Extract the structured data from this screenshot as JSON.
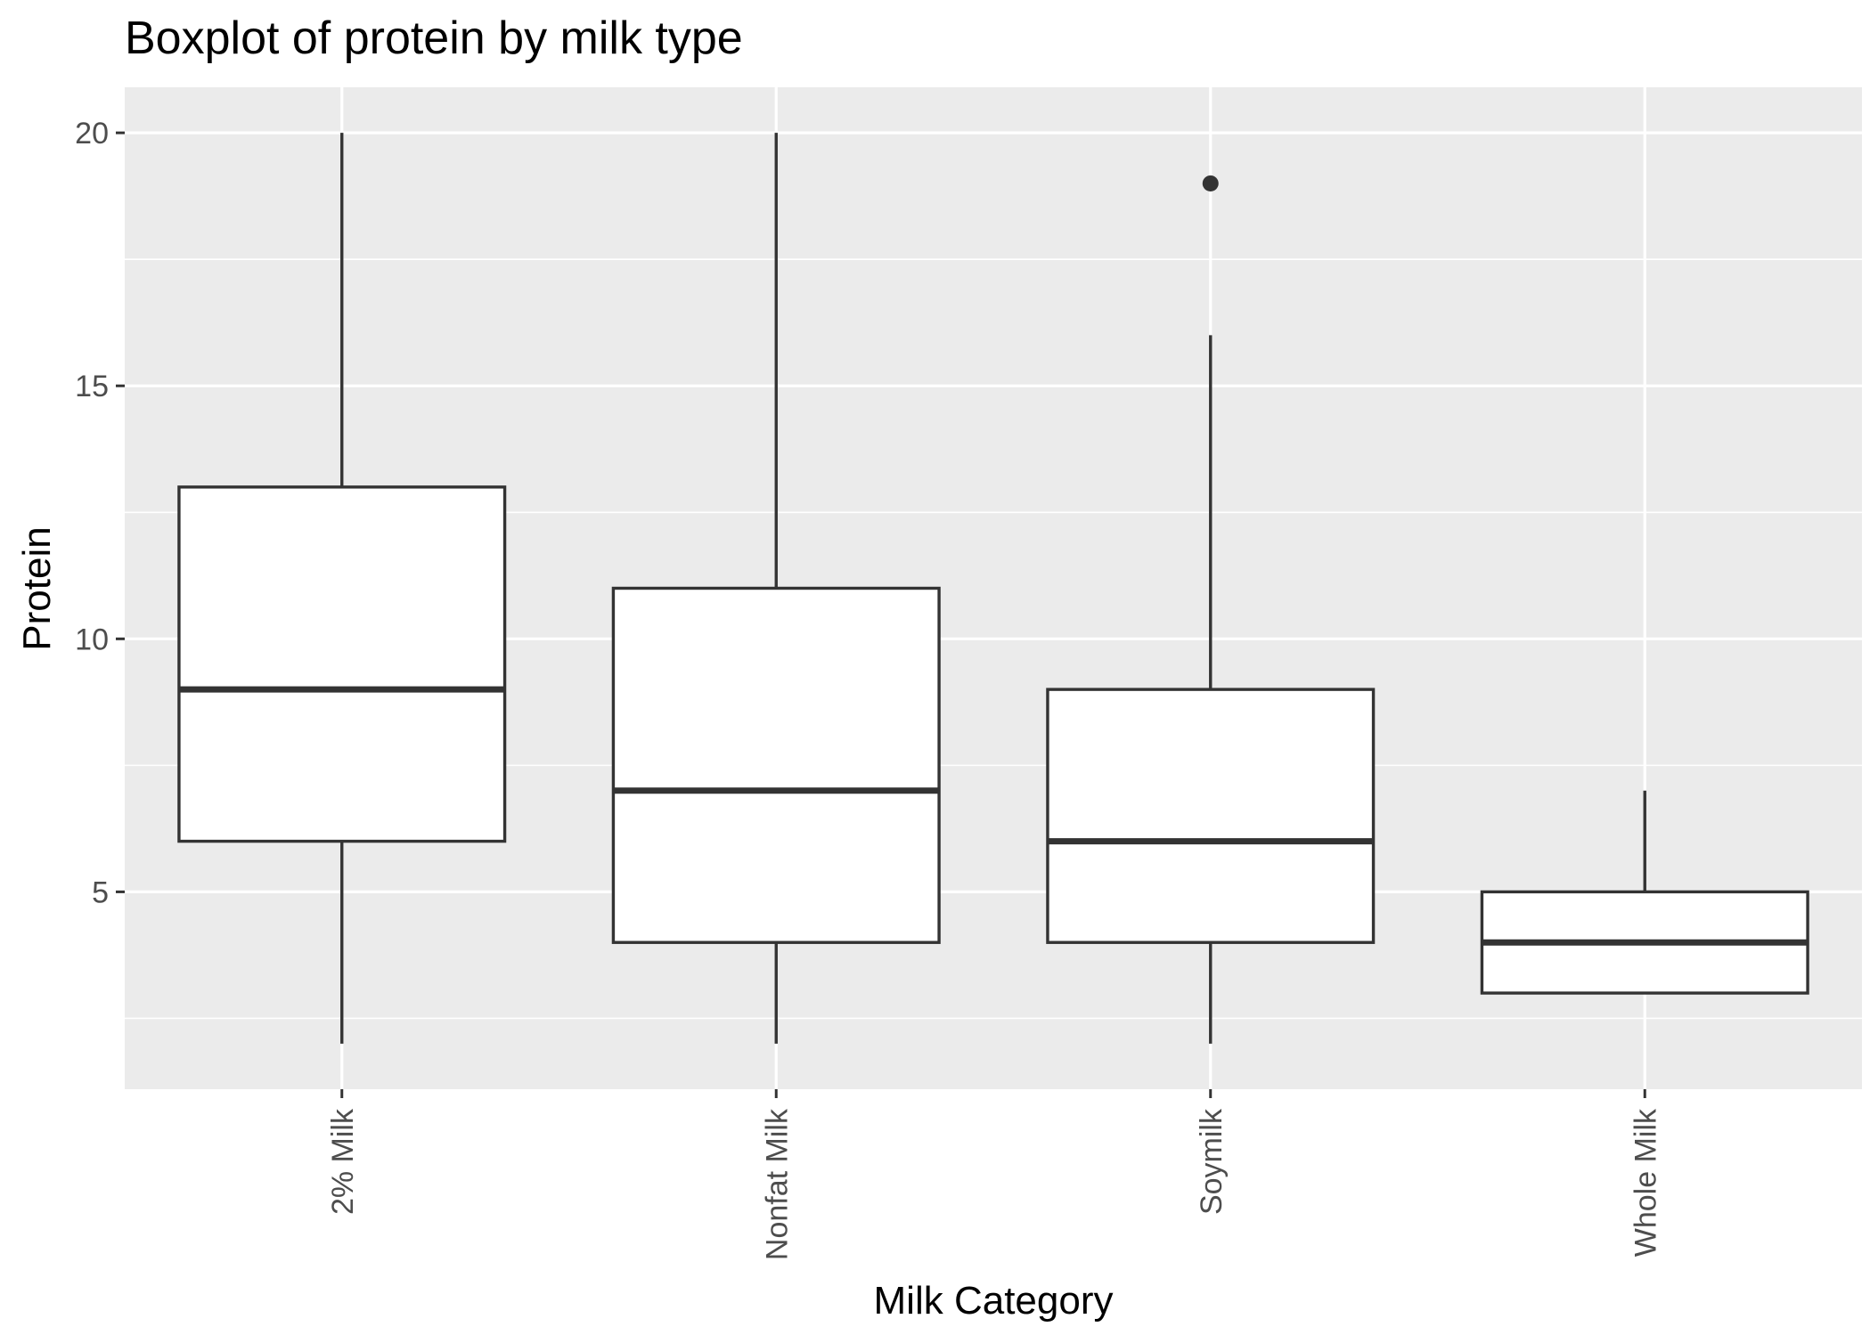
{
  "chart_data": {
    "type": "boxplot",
    "title": "Boxplot of protein by milk type",
    "xlabel": "Milk Category",
    "ylabel": "Protein",
    "categories": [
      "2% Milk",
      "Nonfat Milk",
      "Soymilk",
      "Whole Milk"
    ],
    "boxes": [
      {
        "category": "2% Milk",
        "whisker_low": 2,
        "q1": 6,
        "median": 9,
        "q3": 13,
        "whisker_high": 20,
        "outliers": []
      },
      {
        "category": "Nonfat Milk",
        "whisker_low": 2,
        "q1": 4,
        "median": 7,
        "q3": 11,
        "whisker_high": 20,
        "outliers": []
      },
      {
        "category": "Soymilk",
        "whisker_low": 2,
        "q1": 4,
        "median": 6,
        "q3": 9,
        "whisker_high": 16,
        "outliers": [
          19
        ]
      },
      {
        "category": "Whole Milk",
        "whisker_low": 3,
        "q1": 3,
        "median": 4,
        "q3": 5,
        "whisker_high": 7,
        "outliers": []
      }
    ],
    "ylim": [
      1.1,
      20.9
    ],
    "yticks": [
      5,
      10,
      15,
      20
    ],
    "yminor": [
      2.5,
      7.5,
      12.5,
      17.5
    ],
    "grid": true,
    "colors": {
      "panel": "#ebebeb",
      "grid": "#ffffff",
      "box_fill": "#ffffff",
      "box_line": "#333333",
      "tick": "#333333"
    }
  }
}
